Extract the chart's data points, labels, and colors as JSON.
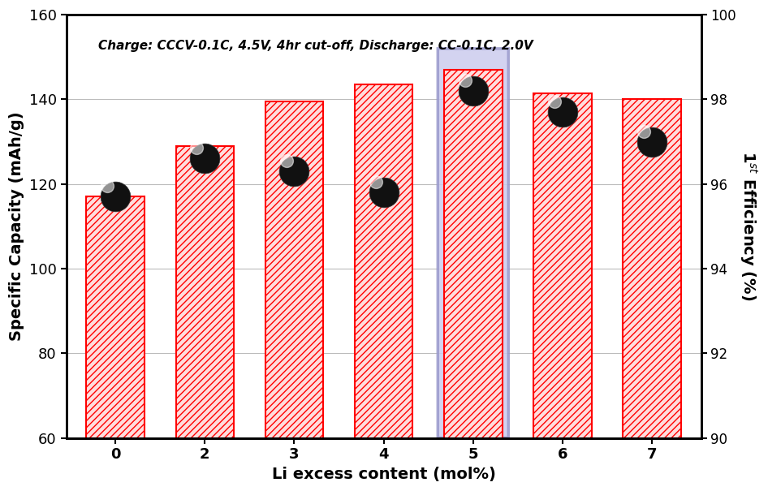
{
  "categories": [
    0,
    2,
    3,
    4,
    5,
    6,
    7
  ],
  "bar_heights": [
    117,
    129,
    139.5,
    143.5,
    147,
    141.5,
    140
  ],
  "dot_y": [
    117,
    126,
    123,
    118,
    142,
    137,
    130
  ],
  "highlighted_bar": 4,
  "bar_facecolor": "#FFDDDD",
  "bar_edgecolor": "#FF0000",
  "highlight_box_facecolor": "#CCCCEE",
  "highlight_box_edgecolor": "#9999CC",
  "hatch_pattern": "////",
  "xlabel": "Li excess content (mol%)",
  "ylabel_left": "Specific Capacity (mAh/g)",
  "ylabel_right": "1$^{st}$ Efficiency (%)",
  "ylim_left": [
    60,
    160
  ],
  "ylim_right": [
    90,
    100
  ],
  "yticks_left": [
    60,
    80,
    100,
    120,
    140,
    160
  ],
  "yticks_right": [
    90,
    92,
    94,
    96,
    98,
    100
  ],
  "annotation": "Charge: CCCV-0.1C, 4.5V, 4hr cut-off, Discharge: CC-0.1C, 2.0V",
  "bg_color": "#FFFFFF",
  "bar_width": 0.65
}
